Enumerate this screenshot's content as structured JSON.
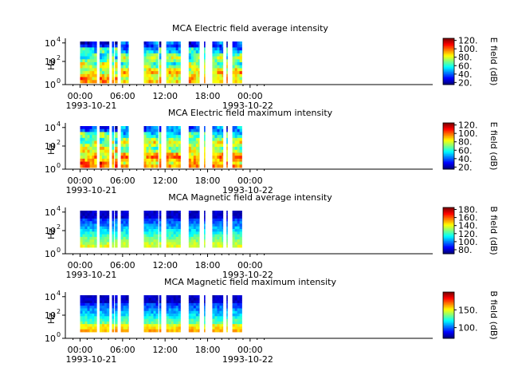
{
  "chart_data": [
    {
      "type": "heatmap",
      "title": "MCA  Electric field average intensity",
      "ylabel": "Hz",
      "y_ticks": [
        "10",
        "10",
        "10"
      ],
      "y_exps": [
        "0",
        "2",
        "4"
      ],
      "x_ticks": [
        "00:00",
        "06:00",
        "12:00",
        "18:00",
        "00:00"
      ],
      "x_start_date": "1993-10-21",
      "x_end_date": "1993-10-22",
      "colorbar_label": "E field (dB)",
      "colorbar_ticks": [
        "20.",
        "40.",
        "60.",
        "80.",
        "100.",
        "120."
      ],
      "colorbar_range": [
        15,
        125
      ],
      "intensity_range": [
        15,
        125
      ],
      "field": "E"
    },
    {
      "type": "heatmap",
      "title": "MCA  Electric field maximum intensity",
      "ylabel": "Hz",
      "y_ticks": [
        "10",
        "10",
        "10"
      ],
      "y_exps": [
        "0",
        "2",
        "4"
      ],
      "x_ticks": [
        "00:00",
        "06:00",
        "12:00",
        "18:00",
        "00:00"
      ],
      "x_start_date": "1993-10-21",
      "x_end_date": "1993-10-22",
      "colorbar_label": "E field (dB)",
      "colorbar_ticks": [
        "20.",
        "40.",
        "60.",
        "80.",
        "100.",
        "120."
      ],
      "colorbar_range": [
        15,
        125
      ],
      "intensity_range": [
        15,
        125
      ],
      "field": "E"
    },
    {
      "type": "heatmap",
      "title": "MCA  Magnetic field average intensity",
      "ylabel": "Hz",
      "y_ticks": [
        "10",
        "10",
        "10"
      ],
      "y_exps": [
        "0",
        "2",
        "4"
      ],
      "x_ticks": [
        "00:00",
        "06:00",
        "12:00",
        "18:00",
        "00:00"
      ],
      "x_start_date": "1993-10-21",
      "x_end_date": "1993-10-22",
      "colorbar_label": "B field (dB)",
      "colorbar_ticks": [
        "80.",
        "100.",
        "120.",
        "140.",
        "160.",
        "180."
      ],
      "colorbar_range": [
        70,
        185
      ],
      "intensity_range": [
        70,
        185
      ],
      "field": "B"
    },
    {
      "type": "heatmap",
      "title": "MCA  Magnetic field maximum intensity",
      "ylabel": "Hz",
      "y_ticks": [
        "10",
        "10",
        "10"
      ],
      "y_exps": [
        "0",
        "2",
        "4"
      ],
      "x_ticks": [
        "00:00",
        "06:00",
        "12:00",
        "18:00",
        "00:00"
      ],
      "x_start_date": "1993-10-21",
      "x_end_date": "1993-10-22",
      "colorbar_label": "B field (dB)",
      "colorbar_ticks": [
        "100.",
        "150."
      ],
      "colorbar_range": [
        70,
        200
      ],
      "intensity_range": [
        70,
        200
      ],
      "field": "B"
    }
  ],
  "data_intervals_utc": [
    [
      "00:00",
      "02:00"
    ],
    [
      "02:00",
      "02:20"
    ],
    [
      "02:45",
      "04:05"
    ],
    [
      "04:30",
      "04:45"
    ],
    [
      "04:55",
      "05:15"
    ],
    [
      "05:45",
      "06:50"
    ],
    [
      "09:00",
      "11:00"
    ],
    [
      "11:10",
      "11:25"
    ],
    [
      "12:10",
      "14:10"
    ],
    [
      "15:20",
      "16:50"
    ],
    [
      "17:30",
      "17:38"
    ],
    [
      "18:40",
      "20:10"
    ],
    [
      "20:40",
      "20:48"
    ],
    [
      "21:30",
      "22:50"
    ]
  ],
  "colors": {
    "low": "#0000ff",
    "mid": "#00ff00",
    "high": "#ff0000",
    "axis": "#000000"
  }
}
